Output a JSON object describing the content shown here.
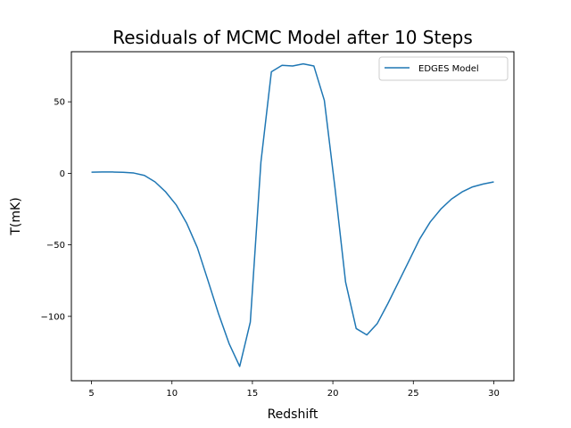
{
  "chart_data": {
    "type": "line",
    "title": "Residuals of MCMC Model after 10 Steps",
    "xlabel": "Redshift",
    "ylabel": "T(mK)",
    "xlim": [
      3.75,
      31.25
    ],
    "ylim": [
      -145,
      85
    ],
    "xticks": [
      5,
      10,
      15,
      20,
      25,
      30
    ],
    "yticks": [
      -100,
      -50,
      0,
      50
    ],
    "grid": false,
    "legend_position": "upper right",
    "series": [
      {
        "name": "EDGES Model",
        "color": "#1f77b4",
        "x": [
          5.0,
          5.66,
          6.32,
          6.97,
          7.63,
          8.29,
          8.95,
          9.61,
          10.26,
          10.92,
          11.58,
          12.24,
          12.89,
          13.55,
          14.21,
          14.87,
          15.53,
          16.18,
          16.84,
          17.5,
          18.16,
          18.82,
          19.47,
          20.13,
          20.79,
          21.45,
          22.11,
          22.76,
          23.42,
          24.08,
          24.74,
          25.39,
          26.05,
          26.71,
          27.37,
          28.03,
          28.68,
          29.34,
          30.0
        ],
        "values": [
          0.8,
          0.9,
          0.9,
          0.7,
          0.2,
          -1.5,
          -6.0,
          -13.0,
          -22.0,
          -35.0,
          -52.0,
          -75.0,
          -98.0,
          -119.0,
          -135.0,
          -104.0,
          8.0,
          71.0,
          75.5,
          75.0,
          76.5,
          75.0,
          51.0,
          -10.0,
          -76.0,
          -108.5,
          -113.0,
          -105.0,
          -91.0,
          -76.0,
          -61.0,
          -46.0,
          -34.0,
          -25.0,
          -18.0,
          -13.0,
          -9.5,
          -7.5,
          -6.0
        ]
      }
    ]
  }
}
